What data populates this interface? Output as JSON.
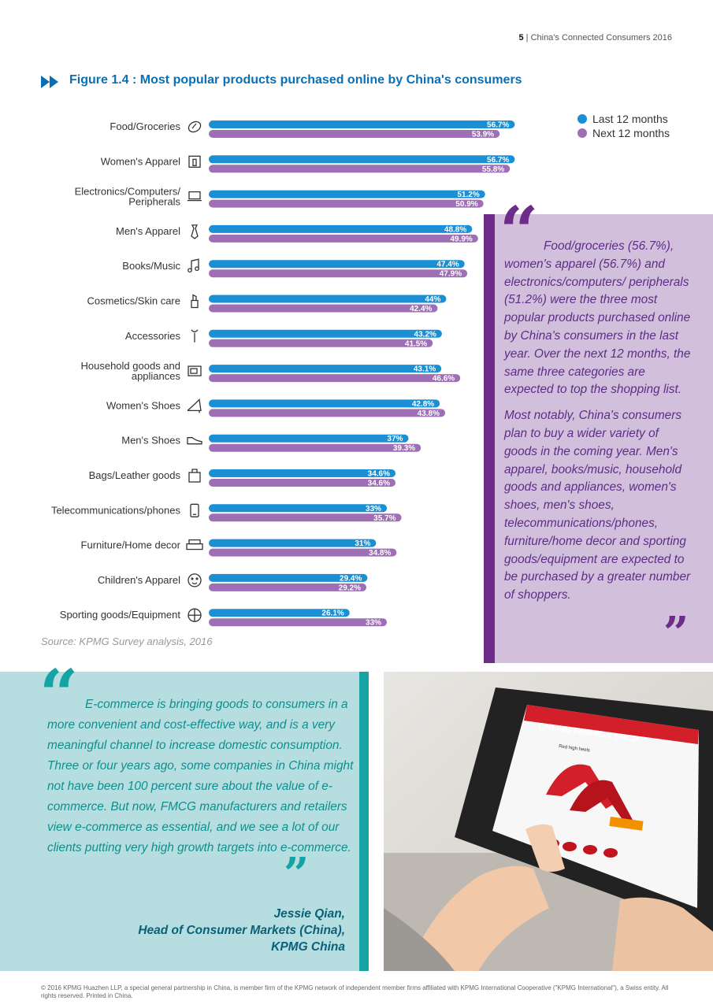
{
  "header": {
    "page_number": "5",
    "separator": "|",
    "publication": "China's Connected Consumers 2016"
  },
  "figure": {
    "title": "Figure 1.4 : Most popular products purchased online by China's consumers"
  },
  "legend": {
    "last_label": "Last 12 months",
    "next_label": "Next 12 months"
  },
  "colors": {
    "last": "#1b8fd3",
    "next": "#9e6fb5",
    "accent_purple": "#6d2c87",
    "accent_teal": "#16a3a3"
  },
  "chart_data": {
    "type": "bar",
    "orientation": "horizontal",
    "categories": [
      "Food/Groceries",
      "Women's Apparel",
      "Electronics/Computers/ Peripherals",
      "Men's Apparel",
      "Books/Music",
      "Cosmetics/Skin care",
      "Accessories",
      "Household goods and appliances",
      "Women's Shoes",
      "Men's Shoes",
      "Bags/Leather goods",
      "Telecommunications/phones",
      "Furniture/Home decor",
      "Children's Apparel",
      "Sporting goods/Equipment"
    ],
    "icons": [
      "bread-icon",
      "dress-icon",
      "laptop-icon",
      "tie-icon",
      "music-note-icon",
      "lipstick-icon",
      "wrench-icon",
      "tv-icon",
      "high-heel-icon",
      "sneaker-icon",
      "bag-icon",
      "phone-icon",
      "sofa-icon",
      "child-face-icon",
      "ball-icon"
    ],
    "series": [
      {
        "name": "Last 12 months",
        "values": [
          56.7,
          56.7,
          51.2,
          48.8,
          47.4,
          44,
          43.2,
          43.1,
          42.8,
          37,
          34.6,
          33,
          31,
          29.4,
          26.1
        ],
        "labels": [
          "56.7%",
          "56.7%",
          "51.2%",
          "48.8%",
          "47.4%",
          "44%",
          "43.2%",
          "43.1%",
          "42.8%",
          "37%",
          "34.6%",
          "33%",
          "31%",
          "29.4%",
          "26.1%"
        ]
      },
      {
        "name": "Next 12 months",
        "values": [
          53.9,
          55.8,
          50.9,
          49.9,
          47.9,
          42.4,
          41.5,
          46.6,
          43.8,
          39.3,
          34.6,
          35.7,
          34.8,
          29.2,
          33
        ],
        "labels": [
          "53.9%",
          "55.8%",
          "50.9%",
          "49.9%",
          "47.9%",
          "42.4%",
          "41.5%",
          "46.6%",
          "43.8%",
          "39.3%",
          "34.6%",
          "35.7%",
          "34.8%",
          "29.2%",
          "33%"
        ]
      }
    ],
    "legend_position": "top-right",
    "grid": false
  },
  "source": "Source: KPMG Survey analysis, 2016",
  "quote1": {
    "para1": "Food/groceries (56.7%), women's apparel (56.7%) and electronics/computers/ peripherals (51.2%) were the three most popular products purchased online by China's consumers in the last year. Over the next 12 months, the same three categories are expected to top the shopping list.",
    "para2": "Most notably, China's consumers plan to buy a wider variety of goods in the coming year. Men's apparel, books/music, household goods and appliances, women's shoes, men's shoes, telecommunications/phones, furniture/home decor and sporting goods/equipment are expected to be purchased by a greater number of shoppers."
  },
  "quote2": {
    "text": "E-commerce is bringing goods to consumers in a more convenient and cost-effective way, and is a very meaningful channel to increase domestic consumption. Three or four years ago, some companies in China might not have been 100 percent sure about the value of e-commerce. But now, FMCG manufacturers and retailers view e-commerce as essential, and we see a lot of our clients putting very high growth targets into e-commerce."
  },
  "attribution": {
    "name": "Jessie Qian,",
    "role": "Head of Consumer Markets (China),",
    "org": "KPMG China"
  },
  "photo": {
    "shop_title": "ONLINE FASHION SHOP",
    "product": "Red high heels"
  },
  "footer": "© 2016 KPMG Huazhen LLP, a special general partnership in China, is member firm of the KPMG network of independent member firms affiliated with KPMG International Cooperative (\"KPMG International\"), a Swiss entity. All rights reserved. Printed in China."
}
